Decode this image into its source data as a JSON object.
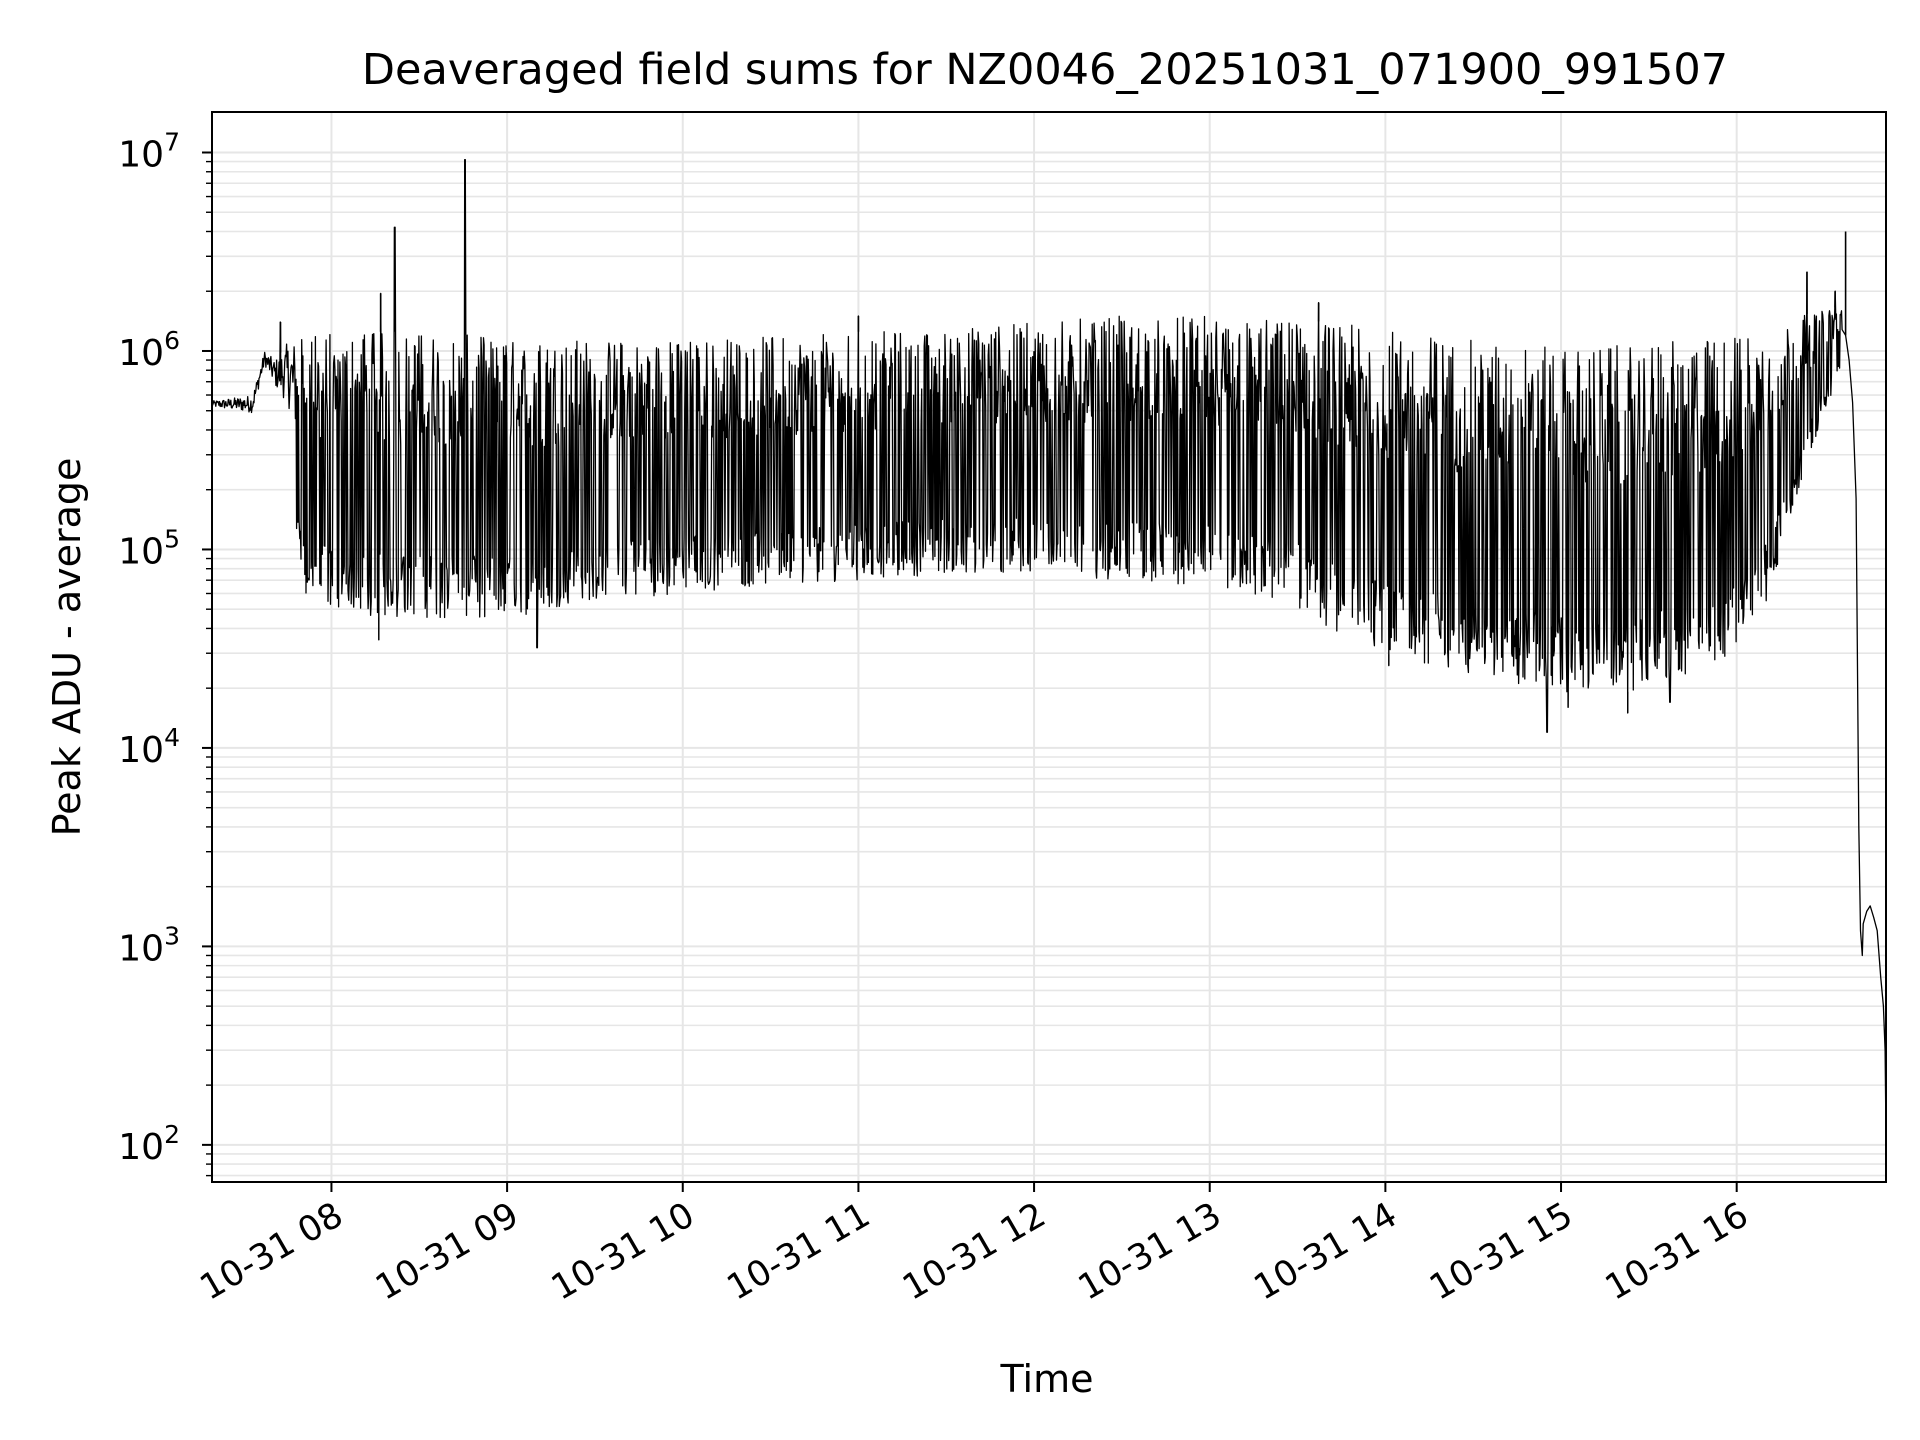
{
  "chart_data": {
    "type": "line",
    "title": "Deaveraged field sums for NZ0046_20251031_071900_991507",
    "xlabel": "Time",
    "ylabel": "Peak ADU - average",
    "yscale": "log",
    "ylim": [
      65,
      16000000
    ],
    "xlim_hours": [
      7.32,
      16.85
    ],
    "x_ticks": [
      {
        "hour": 8,
        "label": "10-31 08"
      },
      {
        "hour": 9,
        "label": "10-31 09"
      },
      {
        "hour": 10,
        "label": "10-31 10"
      },
      {
        "hour": 11,
        "label": "10-31 11"
      },
      {
        "hour": 12,
        "label": "10-31 12"
      },
      {
        "hour": 13,
        "label": "10-31 13"
      },
      {
        "hour": 14,
        "label": "10-31 14"
      },
      {
        "hour": 15,
        "label": "10-31 15"
      },
      {
        "hour": 16,
        "label": "10-31 16"
      }
    ],
    "y_ticks": [
      {
        "value": 100,
        "base": "10",
        "exp": "2"
      },
      {
        "value": 1000,
        "base": "10",
        "exp": "3"
      },
      {
        "value": 10000,
        "base": "10",
        "exp": "4"
      },
      {
        "value": 100000,
        "base": "10",
        "exp": "5"
      },
      {
        "value": 1000000,
        "base": "10",
        "exp": "6"
      },
      {
        "value": 10000000,
        "base": "10",
        "exp": "7"
      }
    ],
    "grid": true,
    "series_color": "#000000",
    "envelope": {
      "x_hours": [
        7.32,
        7.55,
        7.62,
        7.68,
        7.75,
        7.8,
        7.85,
        8.0,
        8.3,
        8.6,
        9.0,
        9.5,
        10.0,
        10.5,
        11.0,
        11.5,
        12.0,
        12.5,
        13.0,
        13.5,
        13.8,
        14.0,
        14.3,
        14.6,
        14.9,
        15.2,
        15.5,
        15.8,
        16.0,
        16.2,
        16.35,
        16.5,
        16.6
      ],
      "upper": [
        560000,
        600000,
        1000000,
        900000,
        1100000,
        1150000,
        1200000,
        1250000,
        1250000,
        1250000,
        1150000,
        1150000,
        1150000,
        1200000,
        1250000,
        1300000,
        1400000,
        1500000,
        1500000,
        1450000,
        1350000,
        1300000,
        1200000,
        1100000,
        1050000,
        1050000,
        1100000,
        1150000,
        1250000,
        1350000,
        1500000,
        1600000,
        1700000
      ],
      "lower": [
        480000,
        380000,
        700000,
        450000,
        230000,
        100000,
        60000,
        50000,
        45000,
        45000,
        45000,
        55000,
        60000,
        65000,
        70000,
        75000,
        75000,
        70000,
        65000,
        50000,
        35000,
        30000,
        25000,
        22000,
        20000,
        18000,
        20000,
        22000,
        30000,
        60000,
        200000,
        500000,
        800000
      ]
    },
    "tail": {
      "x_hours": [
        16.62,
        16.64,
        16.66,
        16.68,
        16.695,
        16.705,
        16.715,
        16.72,
        16.74,
        16.76,
        16.78,
        16.8,
        16.82,
        16.835,
        16.845,
        16.85
      ],
      "y": [
        1200000,
        900000,
        550000,
        180000,
        4000,
        1200,
        900,
        1300,
        1500,
        1600,
        1400,
        1200,
        700,
        500,
        300,
        110
      ]
    },
    "spikes": [
      {
        "hour": 7.71,
        "value": 1400000
      },
      {
        "hour": 8.28,
        "value": 1950000
      },
      {
        "hour": 8.36,
        "value": 4200000
      },
      {
        "hour": 8.76,
        "value": 9200000
      },
      {
        "hour": 11.0,
        "value": 1500000
      },
      {
        "hour": 13.62,
        "value": 1750000
      },
      {
        "hour": 16.4,
        "value": 2500000
      },
      {
        "hour": 16.56,
        "value": 2000000
      },
      {
        "hour": 16.62,
        "value": 4000000
      }
    ],
    "dips": [
      {
        "hour": 8.27,
        "value": 35000
      },
      {
        "hour": 9.17,
        "value": 32000
      },
      {
        "hour": 14.02,
        "value": 26000
      },
      {
        "hour": 14.92,
        "value": 12000
      },
      {
        "hour": 15.04,
        "value": 16000
      },
      {
        "hour": 15.38,
        "value": 15000
      },
      {
        "hour": 15.62,
        "value": 17000
      }
    ]
  }
}
